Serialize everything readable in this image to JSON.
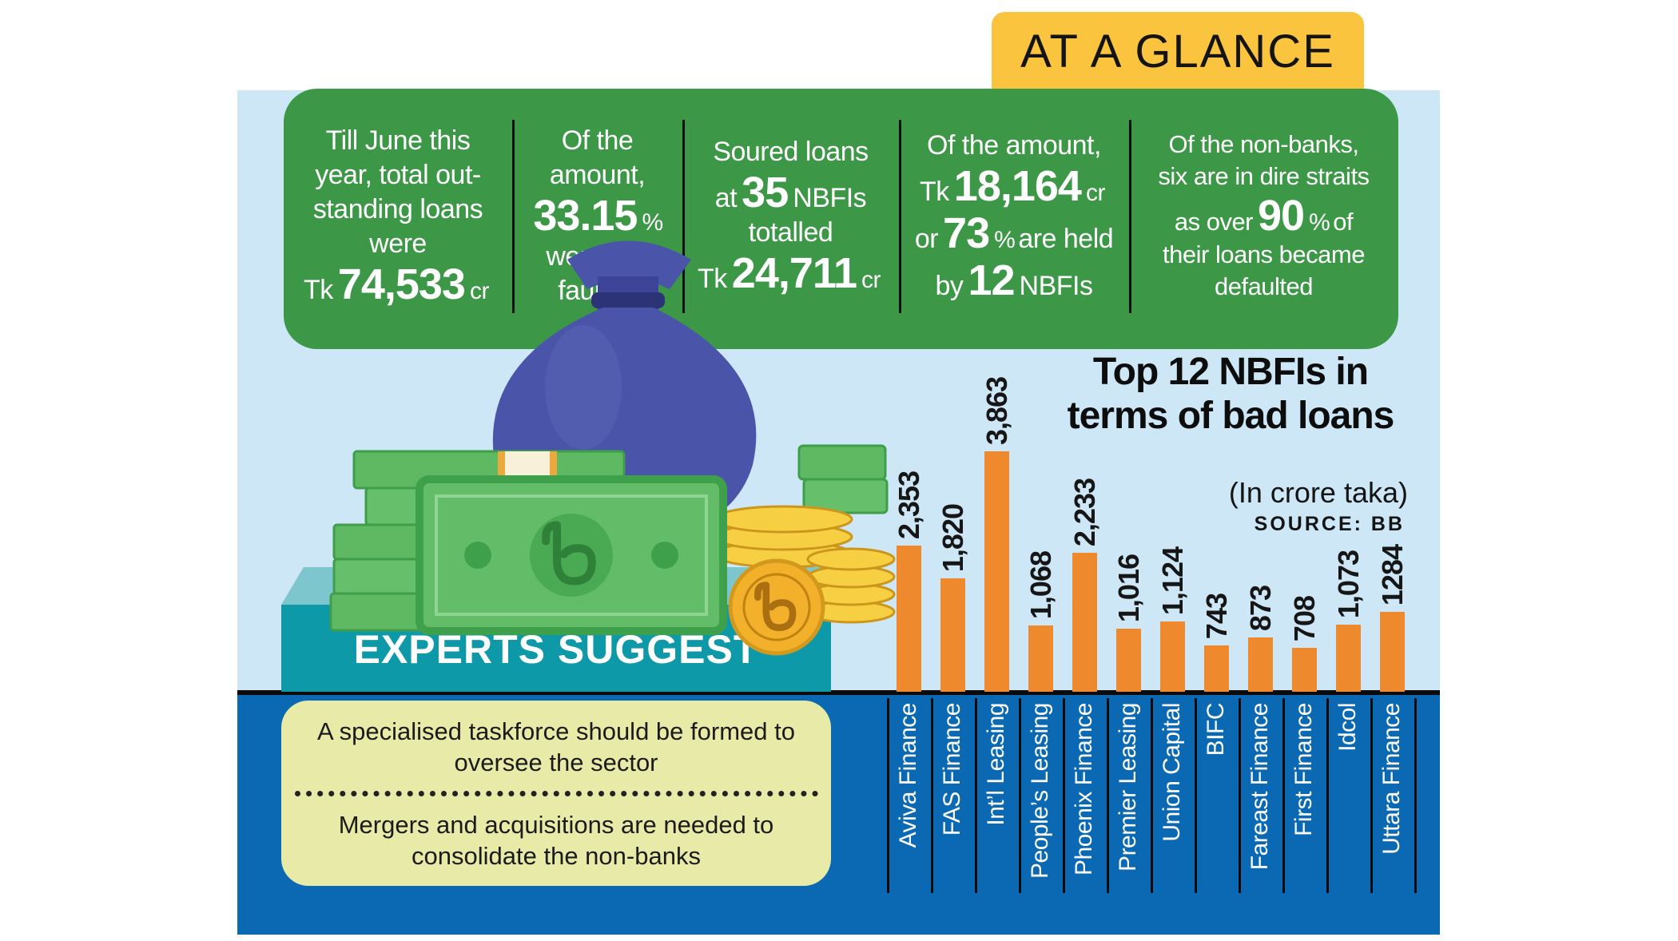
{
  "badge": {
    "label": "AT A GLANCE"
  },
  "stats": {
    "panels": [
      {
        "lines": [
          [
            {
              "t": "Till June this"
            }
          ],
          [
            {
              "t": "year, total out-"
            }
          ],
          [
            {
              "t": "standing loans"
            }
          ],
          [
            {
              "t": "were"
            }
          ],
          [
            {
              "t": "Tk"
            },
            {
              "t": "74,533",
              "c": "b"
            },
            {
              "t": "cr",
              "c": "s"
            }
          ]
        ]
      },
      {
        "lines": [
          [
            {
              "t": "Of the"
            }
          ],
          [
            {
              "t": "amount,"
            }
          ],
          [
            {
              "t": "33.15",
              "c": "b"
            },
            {
              "t": "%",
              "c": "s"
            }
          ],
          [
            {
              "t": "were de-"
            }
          ],
          [
            {
              "t": "faulted"
            }
          ]
        ]
      },
      {
        "lines": [
          [
            {
              "t": "Soured loans"
            }
          ],
          [
            {
              "t": "at"
            },
            {
              "t": "35",
              "c": "b"
            },
            {
              "t": "NBFIs"
            }
          ],
          [
            {
              "t": "totalled"
            }
          ],
          [
            {
              "t": "Tk"
            },
            {
              "t": "24,711",
              "c": "b"
            },
            {
              "t": "cr",
              "c": "s"
            }
          ]
        ]
      },
      {
        "lines": [
          [
            {
              "t": "Of the amount,"
            }
          ],
          [
            {
              "t": "Tk"
            },
            {
              "t": "18,164",
              "c": "b"
            },
            {
              "t": "cr",
              "c": "s"
            }
          ],
          [
            {
              "t": "or"
            },
            {
              "t": "73",
              "c": "b"
            },
            {
              "t": "%",
              "c": "s"
            },
            {
              "t": "are held"
            }
          ],
          [
            {
              "t": "by"
            },
            {
              "t": "12",
              "c": "b"
            },
            {
              "t": "NBFIs"
            }
          ]
        ]
      },
      {
        "lines": [
          [
            {
              "t": "Of the non-banks,"
            }
          ],
          [
            {
              "t": "six are in dire straits"
            }
          ],
          [
            {
              "t": "as over"
            },
            {
              "t": "90",
              "c": "b"
            },
            {
              "t": "%",
              "c": "s"
            },
            {
              "t": "of"
            }
          ],
          [
            {
              "t": "their loans became"
            }
          ],
          [
            {
              "t": "defaulted"
            }
          ]
        ]
      }
    ]
  },
  "experts": {
    "title": "EXPERTS SUGGEST",
    "suggestions": [
      "A specialised taskforce should be formed to oversee the sector",
      "Mergers and acquisitions are needed to consolidate the non-banks"
    ]
  },
  "chart": {
    "title_line1": "Top 12 NBFIs in",
    "title_line2": "terms of bad loans",
    "unit_note": "(In crore taka)",
    "source": "SOURCE: BB"
  },
  "chart_data": {
    "type": "bar",
    "title": "Top 12 NBFIs in terms of bad loans",
    "unit": "crore taka",
    "source": "SOURCE: BB",
    "categories": [
      "Aviva Finance",
      "FAS Finance",
      "Int’l Leasing",
      "People’s Leasing",
      "Phoenix Finance",
      "Premier Leasing",
      "Union Capital",
      "BIFC",
      "Fareast Finance",
      "First Finance",
      "Idcol",
      "Uttara Finance"
    ],
    "values": [
      2353,
      1820,
      3863,
      1068,
      2233,
      1016,
      1124,
      743,
      873,
      708,
      1073,
      1284
    ],
    "value_labels": [
      "2,353",
      "1,820",
      "3,863",
      "1,068",
      "2,233",
      "1,016",
      "1,124",
      "743",
      "873",
      "708",
      "1,073",
      "1284"
    ],
    "ylim": [
      0,
      3863
    ],
    "bar_color": "#ee8a2d",
    "grid": false,
    "legend": "none"
  },
  "colors": {
    "light_blue": "#cde7f6",
    "dark_blue": "#0a69b2",
    "green": "#3c9846",
    "yellow": "#fac43e",
    "teal": "#0d99a8",
    "teal_top": "#7ec6ce",
    "cream": "#e8eba7",
    "orange": "#ee8a2d"
  }
}
